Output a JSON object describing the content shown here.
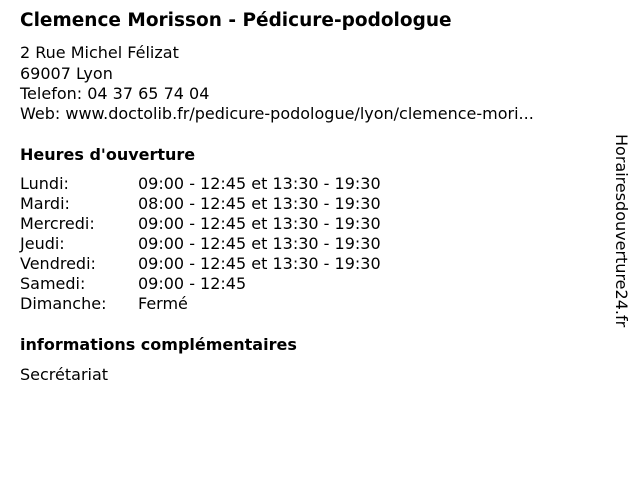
{
  "title": "Clemence Morisson - Pédicure-podologue",
  "address": {
    "street": "2 Rue Michel Félizat",
    "city": "69007 Lyon",
    "phone": "Telefon: 04 37 65 74 04",
    "web": "Web: www.doctolib.fr/pedicure-podologue/lyon/clemence-mori..."
  },
  "hours_heading": "Heures d'ouverture",
  "hours": [
    {
      "day": "Lundi:",
      "time": "09:00 - 12:45 et 13:30 - 19:30"
    },
    {
      "day": "Mardi:",
      "time": "08:00 - 12:45 et 13:30 - 19:30"
    },
    {
      "day": "Mercredi:",
      "time": "09:00 - 12:45 et 13:30 - 19:30"
    },
    {
      "day": "Jeudi:",
      "time": "09:00 - 12:45 et 13:30 - 19:30"
    },
    {
      "day": "Vendredi:",
      "time": "09:00 - 12:45 et 13:30 - 19:30"
    },
    {
      "day": "Samedi:",
      "time": "09:00 - 12:45"
    },
    {
      "day": "Dimanche:",
      "time": "Fermé"
    }
  ],
  "info_heading": "informations complémentaires",
  "info_text": "Secrétariat",
  "watermark": "Horairesdouverture24.fr"
}
